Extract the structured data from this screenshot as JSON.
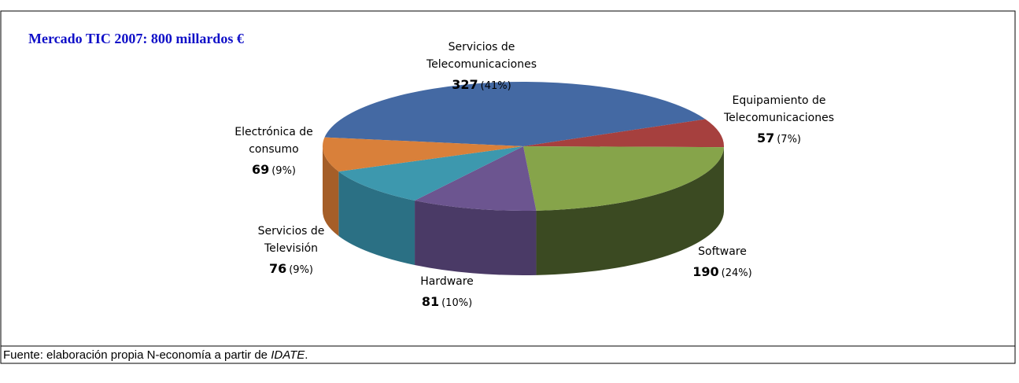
{
  "chart_data": {
    "type": "pie3d",
    "annotation": "Mercado TIC 2007: 800 millardos €",
    "categories": [
      [
        "Servicios de",
        "Telecomunicaciones"
      ],
      [
        "Equipamiento de",
        "Telecomunicaciones"
      ],
      [
        "Software"
      ],
      [
        "Hardware"
      ],
      [
        "Servicios de",
        "Televisión"
      ],
      [
        "Electrónica de",
        "consumo"
      ]
    ],
    "values": [
      327,
      57,
      190,
      81,
      76,
      69
    ],
    "percent_labels": [
      "(41%)",
      "(7%)",
      "(24%)",
      "(10%)",
      "(9%)",
      "(9%)"
    ],
    "colors": [
      "#4469a3",
      "#a6403e",
      "#86a44a",
      "#6c5590",
      "#3d98ae",
      "#d9803a"
    ],
    "side_colors": [
      "#2e4a78",
      "#72302e",
      "#3b4a22",
      "#4a3a66",
      "#2b7084",
      "#a55e28"
    ]
  },
  "source": {
    "text": "Fuente: elaboración propia N-economía a partir de ",
    "italic": "IDATE",
    "end": "."
  }
}
